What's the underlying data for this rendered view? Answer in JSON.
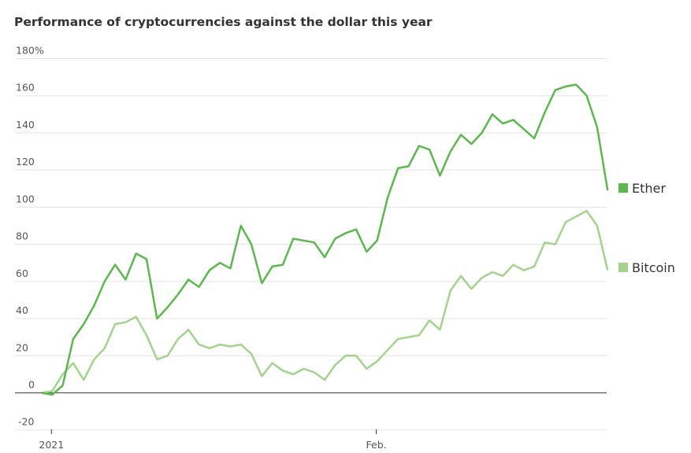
{
  "chart_data": {
    "type": "line",
    "title": "Performance of cryptocurrencies against the dollar this year",
    "xlabel": "",
    "ylabel": "",
    "ylim": [
      -20,
      180
    ],
    "y_ticks": [
      {
        "value": 180,
        "label": "180%"
      },
      {
        "value": 160,
        "label": "160"
      },
      {
        "value": 140,
        "label": "140"
      },
      {
        "value": 120,
        "label": "120"
      },
      {
        "value": 100,
        "label": "100"
      },
      {
        "value": 80,
        "label": "80"
      },
      {
        "value": 60,
        "label": "60"
      },
      {
        "value": 40,
        "label": "40"
      },
      {
        "value": 20,
        "label": "20"
      },
      {
        "value": 0,
        "label": "0"
      },
      {
        "value": -20,
        "label": "-20"
      }
    ],
    "x_start": "Dec. 31, 2020",
    "x_step_days": 1,
    "x_ticks": [
      {
        "day_index": 1,
        "label": "2021"
      },
      {
        "day_index": 32,
        "label": "Feb."
      }
    ],
    "grid": true,
    "legend_placement": "right, at line ends",
    "series": [
      {
        "name": "Ether",
        "color": "#5cb84e",
        "values": [
          0,
          -1,
          4,
          29,
          37,
          47,
          60,
          69,
          61,
          75,
          72,
          40,
          46,
          53,
          61,
          57,
          66,
          70,
          67,
          90,
          80,
          59,
          68,
          69,
          83,
          82,
          81,
          73,
          83,
          86,
          88,
          76,
          82,
          105,
          121,
          122,
          133,
          131,
          117,
          130,
          139,
          134,
          140,
          150,
          145,
          147,
          142,
          137,
          151,
          163,
          165,
          166,
          160,
          143,
          109
        ]
      },
      {
        "name": "Bitcoin",
        "color": "#a2d48e",
        "values": [
          0,
          1,
          10,
          16,
          7,
          18,
          24,
          37,
          38,
          41,
          31,
          18,
          20,
          29,
          34,
          26,
          24,
          26,
          25,
          26,
          21,
          9,
          16,
          12,
          10,
          13,
          11,
          7,
          15,
          20,
          20,
          13,
          17,
          23,
          29,
          30,
          31,
          39,
          34,
          55,
          63,
          56,
          62,
          65,
          63,
          69,
          66,
          68,
          81,
          80,
          92,
          95,
          98,
          90,
          66
        ]
      }
    ]
  }
}
